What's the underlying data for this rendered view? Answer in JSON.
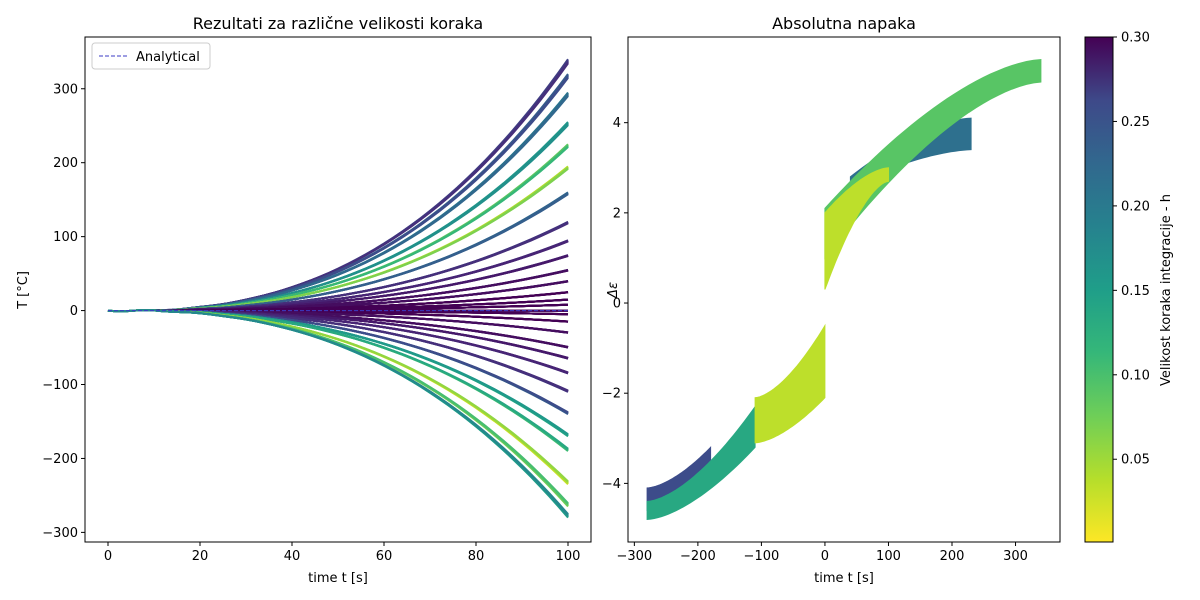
{
  "chart_data": [
    {
      "type": "line",
      "title": "Rezultati za različne velikosti koraka",
      "xlabel": "time t [s]",
      "ylabel": "T [°C]",
      "xlim": [
        -5,
        105
      ],
      "ylim": [
        -313,
        370
      ],
      "xticks": [
        0,
        20,
        40,
        60,
        80,
        100
      ],
      "yticks": [
        -300,
        -200,
        -100,
        0,
        100,
        200,
        300
      ],
      "xtick_labels": [
        "0",
        "20",
        "40",
        "60",
        "80",
        "100"
      ],
      "ytick_labels": [
        "−300",
        "−200",
        "−100",
        "0",
        "100",
        "200",
        "300"
      ],
      "legend": {
        "position": "top-left",
        "entries": [
          "Analytical"
        ]
      },
      "analytical_series": {
        "name": "Analytical",
        "style": "dashed",
        "color": "#3b3bc4",
        "x": [
          0,
          20,
          40,
          60,
          80,
          100
        ],
        "y": [
          0,
          0,
          0,
          0,
          0,
          0
        ]
      },
      "step_size_range": [
        0.001,
        0.3
      ],
      "curve_families": [
        {
          "final_value": 340,
          "h_range": [
            0.24,
            0.26
          ]
        },
        {
          "final_value": 320,
          "h_range": [
            0.21,
            0.23
          ]
        },
        {
          "final_value": 295,
          "h_range": [
            0.18,
            0.2
          ]
        },
        {
          "final_value": 255,
          "h_range": [
            0.14,
            0.15
          ]
        },
        {
          "final_value": 225,
          "h_range": [
            0.07,
            0.1
          ]
        },
        {
          "final_value": 195,
          "h_range": [
            0.03,
            0.06
          ]
        },
        {
          "final_value": 160,
          "h_range": [
            0.2,
            0.21
          ]
        },
        {
          "final_value": 120,
          "h_range": [
            0.25,
            0.26
          ]
        },
        {
          "final_value": 95,
          "h_range": [
            0.26,
            0.27
          ]
        },
        {
          "final_value": 75,
          "h_range": [
            0.27,
            0.28
          ]
        },
        {
          "final_value": 55,
          "h_range": [
            0.28,
            0.29
          ]
        },
        {
          "final_value": 40,
          "h_range": [
            0.28,
            0.29
          ]
        },
        {
          "final_value": 25,
          "h_range": [
            0.29,
            0.3
          ]
        },
        {
          "final_value": 15,
          "h_range": [
            0.29,
            0.3
          ]
        },
        {
          "final_value": 8,
          "h_range": [
            0.29,
            0.3
          ]
        },
        {
          "final_value": 0,
          "h_range": [
            0.29,
            0.3
          ]
        },
        {
          "final_value": -5,
          "h_range": [
            0.29,
            0.3
          ]
        },
        {
          "final_value": -15,
          "h_range": [
            0.29,
            0.3
          ]
        },
        {
          "final_value": -30,
          "h_range": [
            0.28,
            0.29
          ]
        },
        {
          "final_value": -50,
          "h_range": [
            0.28,
            0.29
          ]
        },
        {
          "final_value": -65,
          "h_range": [
            0.27,
            0.28
          ]
        },
        {
          "final_value": -85,
          "h_range": [
            0.26,
            0.27
          ]
        },
        {
          "final_value": -110,
          "h_range": [
            0.25,
            0.26
          ]
        },
        {
          "final_value": -140,
          "h_range": [
            0.21,
            0.23
          ]
        },
        {
          "final_value": -170,
          "h_range": [
            0.12,
            0.14
          ]
        },
        {
          "final_value": -190,
          "h_range": [
            0.09,
            0.12
          ]
        },
        {
          "final_value": -235,
          "h_range": [
            0.02,
            0.05
          ]
        },
        {
          "final_value": -265,
          "h_range": [
            0.06,
            0.09
          ]
        },
        {
          "final_value": -280,
          "h_range": [
            0.13,
            0.16
          ]
        }
      ]
    },
    {
      "type": "scatter",
      "title": "Absolutna napaka",
      "xlabel": "time t [s]",
      "ylabel": "Δε",
      "xlim": [
        -310,
        370
      ],
      "ylim": [
        -5.3,
        5.9
      ],
      "xticks": [
        -300,
        -200,
        -100,
        0,
        100,
        200,
        300
      ],
      "yticks": [
        -4,
        -2,
        0,
        2,
        4
      ],
      "xtick_labels": [
        "−300",
        "−200",
        "−100",
        "0",
        "100",
        "200",
        "300"
      ],
      "ytick_labels": [
        "−4",
        "−2",
        "0",
        "2",
        "4"
      ],
      "bands": [
        {
          "x_range": [
            0,
            100
          ],
          "y_start": [
            0.3,
            2.0
          ],
          "y_end": [
            2.7,
            3.0
          ],
          "h": 0.03
        },
        {
          "x_range": [
            0,
            340
          ],
          "y_start": [
            1.0,
            2.1
          ],
          "y_end": [
            4.9,
            5.4
          ],
          "h": 0.08
        },
        {
          "x_range": [
            40,
            230
          ],
          "y_start": [
            2.6,
            2.8
          ],
          "y_end": [
            3.4,
            4.1
          ],
          "h": 0.19
        },
        {
          "x_range": [
            0,
            -110
          ],
          "y_start": [
            -0.5,
            -2.1
          ],
          "y_end": [
            -2.1,
            -3.1
          ],
          "h": 0.03
        },
        {
          "x_range": [
            -110,
            -280
          ],
          "y_start": [
            -2.3,
            -3.2
          ],
          "y_end": [
            -4.4,
            -4.8
          ],
          "h": 0.12
        },
        {
          "x_range": [
            -180,
            -280
          ],
          "y_start": [
            -3.2,
            -3.6
          ],
          "y_end": [
            -4.1,
            -4.6
          ],
          "h": 0.23
        }
      ],
      "colorbar": {
        "label": "Velikost koraka integracije - h",
        "range": [
          0.001,
          0.3
        ],
        "colormap": "viridis_r",
        "ticks": [
          0.05,
          0.1,
          0.15,
          0.2,
          0.25,
          0.3
        ],
        "tick_labels": [
          "0.05",
          "0.10",
          "0.15",
          "0.20",
          "0.25",
          "0.30"
        ]
      }
    }
  ]
}
